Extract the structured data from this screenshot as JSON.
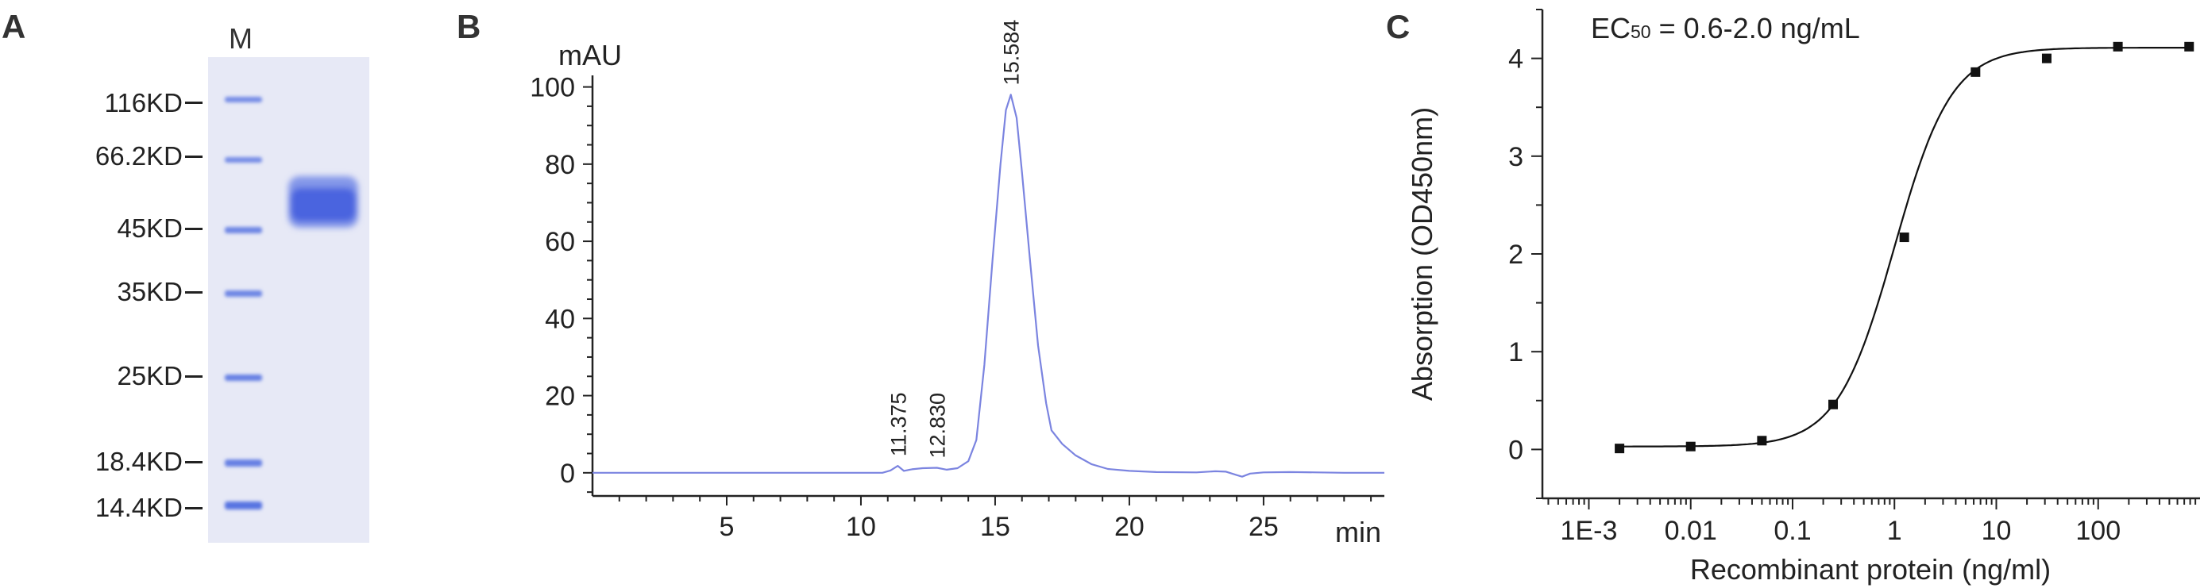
{
  "panels": {
    "a": {
      "letter": "A"
    },
    "b": {
      "letter": "B"
    },
    "c": {
      "letter": "C"
    }
  },
  "gel": {
    "lane_label": "M",
    "markers": [
      "116KD",
      "66.2KD",
      "45KD",
      "35KD",
      "25KD",
      "18.4KD",
      "14.4KD"
    ],
    "tick_char": "–"
  },
  "colors": {
    "gel_background": "#e7e9f6",
    "band": "#4f6de0",
    "hplc_line": "#7b84e0",
    "axis": "#222222"
  },
  "chart_data": [
    {
      "type": "line",
      "ylabel": "mAU",
      "xlabel": "min",
      "xlim": [
        0,
        29.5
      ],
      "ylim": [
        -6,
        103
      ],
      "x_ticks": [
        5,
        10,
        15,
        20,
        25
      ],
      "y_ticks": [
        0,
        20,
        40,
        60,
        80,
        100
      ],
      "peak_labels": [
        {
          "x": 11.375,
          "label": "11.375"
        },
        {
          "x": 12.83,
          "label": "12.830"
        },
        {
          "x": 15.584,
          "label": "15.584"
        }
      ],
      "series": [
        {
          "x": [
            0,
            10.8,
            11.1,
            11.375,
            11.6,
            11.9,
            12.3,
            12.83,
            13.2,
            13.6,
            14.0,
            14.3,
            14.6,
            14.9,
            15.2,
            15.4,
            15.584,
            15.8,
            16.0,
            16.3,
            16.6,
            16.9,
            17.1,
            17.5,
            18.0,
            18.6,
            19.2,
            20.0,
            21.0,
            22.5,
            23.2,
            23.6,
            24.0,
            24.2,
            24.5,
            25.0,
            26.0,
            27.0,
            28.0,
            29.5
          ],
          "y": [
            0,
            0,
            0.6,
            1.8,
            0.5,
            0.9,
            1.2,
            1.3,
            0.8,
            1.2,
            3.0,
            8.5,
            28,
            55,
            80,
            94,
            98,
            92,
            78,
            55,
            33,
            18,
            11,
            7.5,
            4.5,
            2.2,
            1.0,
            0.5,
            0.2,
            0.1,
            0.4,
            0.3,
            -0.6,
            -1.0,
            -0.2,
            0.1,
            0.2,
            0.1,
            0,
            0
          ]
        }
      ]
    },
    {
      "type": "scatter",
      "title": "EC50 = 0.6-2.0 ng/mL",
      "ylabel": "Absorption (OD450nm)",
      "xlabel": "Recombinant protein (ng/ml)",
      "x_scale": "log",
      "xlim": [
        0.00035,
        1000
      ],
      "ylim": [
        -0.5,
        4.5
      ],
      "x_ticks": [
        "1E-3",
        "0.01",
        "0.1",
        "1",
        "10",
        "100"
      ],
      "y_ticks": [
        0,
        1,
        2,
        3,
        4
      ],
      "series": [
        {
          "x": [
            0.002,
            0.01,
            0.05,
            0.25,
            1.25,
            6.25,
            31.25,
            156.25,
            781.25
          ],
          "y": [
            0.01,
            0.03,
            0.09,
            0.46,
            2.17,
            3.86,
            4.0,
            4.12,
            4.12
          ]
        }
      ],
      "fit": {
        "bottom": 0.03,
        "top": 4.11,
        "ec50": 1.0,
        "hill": 1.55
      }
    }
  ]
}
